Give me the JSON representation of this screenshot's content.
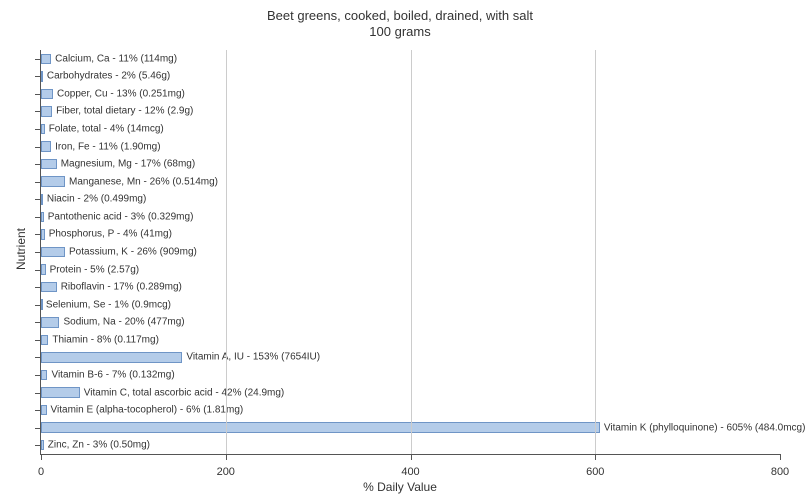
{
  "title_line1": "Beet greens, cooked, boiled, drained, with salt",
  "title_line2": "100 grams",
  "title_fontsize": 13,
  "xlabel": "% Daily Value",
  "ylabel": "Nutrient",
  "axis_label_fontsize": 12,
  "tick_fontsize": 11,
  "bar_label_fontsize": 10,
  "xlim": [
    0,
    800
  ],
  "xticks": [
    0,
    200,
    400,
    600,
    800
  ],
  "gridlines": [
    200,
    400,
    600
  ],
  "bar_color": "#b4cce9",
  "bar_border_color": "#6f95c6",
  "grid_color": "#cccccc",
  "axis_color": "#555555",
  "text_color": "#333333",
  "background_color": "#ffffff",
  "bar_width_ratio": 0.6,
  "nutrients": [
    {
      "label": "Calcium, Ca - 11% (114mg)",
      "value": 11
    },
    {
      "label": "Carbohydrates - 2% (5.46g)",
      "value": 2
    },
    {
      "label": "Copper, Cu - 13% (0.251mg)",
      "value": 13
    },
    {
      "label": "Fiber, total dietary - 12% (2.9g)",
      "value": 12
    },
    {
      "label": "Folate, total - 4% (14mcg)",
      "value": 4
    },
    {
      "label": "Iron, Fe - 11% (1.90mg)",
      "value": 11
    },
    {
      "label": "Magnesium, Mg - 17% (68mg)",
      "value": 17
    },
    {
      "label": "Manganese, Mn - 26% (0.514mg)",
      "value": 26
    },
    {
      "label": "Niacin - 2% (0.499mg)",
      "value": 2
    },
    {
      "label": "Pantothenic acid - 3% (0.329mg)",
      "value": 3
    },
    {
      "label": "Phosphorus, P - 4% (41mg)",
      "value": 4
    },
    {
      "label": "Potassium, K - 26% (909mg)",
      "value": 26
    },
    {
      "label": "Protein - 5% (2.57g)",
      "value": 5
    },
    {
      "label": "Riboflavin - 17% (0.289mg)",
      "value": 17
    },
    {
      "label": "Selenium, Se - 1% (0.9mcg)",
      "value": 1
    },
    {
      "label": "Sodium, Na - 20% (477mg)",
      "value": 20
    },
    {
      "label": "Thiamin - 8% (0.117mg)",
      "value": 8
    },
    {
      "label": "Vitamin A, IU - 153% (7654IU)",
      "value": 153
    },
    {
      "label": "Vitamin B-6 - 7% (0.132mg)",
      "value": 7
    },
    {
      "label": "Vitamin C, total ascorbic acid - 42% (24.9mg)",
      "value": 42
    },
    {
      "label": "Vitamin E (alpha-tocopherol) - 6% (1.81mg)",
      "value": 6
    },
    {
      "label": "Vitamin K (phylloquinone) - 605% (484.0mcg)",
      "value": 605
    },
    {
      "label": "Zinc, Zn - 3% (0.50mg)",
      "value": 3
    }
  ]
}
